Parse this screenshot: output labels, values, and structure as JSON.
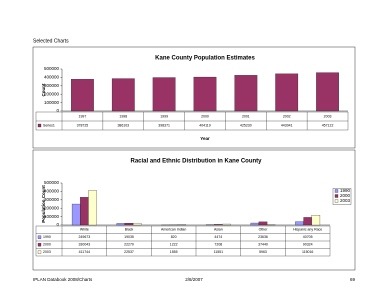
{
  "header": "Selected Charts",
  "chart_data": [
    {
      "type": "bar",
      "title": "Kane County Population Estimates",
      "x_label": "Year",
      "y_label": "Count",
      "categories": [
        "1997",
        "1998",
        "1999",
        "2000",
        "2001",
        "2002",
        "2003"
      ],
      "series": [
        {
          "name": "Series1",
          "color": "#993366",
          "values": [
            378725,
            386103,
            398371,
            404119,
            425230,
            443041,
            457122
          ]
        }
      ],
      "ylim": [
        0,
        500000
      ],
      "yticks": [
        0,
        100000,
        200000,
        300000,
        400000,
        500000
      ],
      "grid": false,
      "legend": "table"
    },
    {
      "type": "bar",
      "title": "Racial and Ethnic Distribution in Kane County",
      "y_label": "Population Count",
      "categories": [
        "White",
        "Black",
        "American Indian",
        "Asian",
        "Other",
        "Hispanic any Race"
      ],
      "series": [
        {
          "name": "1990",
          "color": "#9999ff",
          "values": [
            249673,
            19035,
            820,
            4474,
            23636,
            40705
          ]
        },
        {
          "name": "2000",
          "color": "#993366",
          "values": [
            330043,
            22270,
            1222,
            7208,
            37440,
            90324
          ]
        },
        {
          "name": "2003",
          "color": "#ffffcc",
          "values": [
            411744,
            22537,
            1555,
            11551,
            5963,
            115016
          ]
        }
      ],
      "ylim": [
        0,
        500000
      ],
      "yticks": [
        0,
        100000,
        200000,
        300000,
        400000,
        500000
      ],
      "grid": false,
      "legend": "right"
    }
  ],
  "footer": {
    "left": "IPLAN Databook 2008/Charts",
    "center": "2/8/2007",
    "right": "69"
  }
}
